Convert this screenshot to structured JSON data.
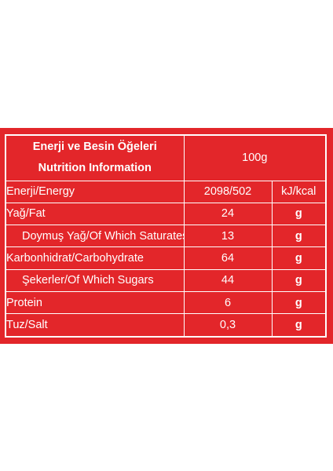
{
  "table": {
    "header": {
      "title_tr": "Enerji ve Besin Öğeleri",
      "title_en": "Nutrition Information",
      "amount": "100g"
    },
    "rows": [
      {
        "label": "Enerji/Energy",
        "value": "2098/502",
        "unit": "kJ/kcal"
      },
      {
        "label": "Yağ/Fat",
        "value": "24",
        "unit": "g"
      },
      {
        "label": "Doymuş Yağ/Of Which Saturates",
        "value": "13",
        "unit": "g"
      },
      {
        "label": "Karbonhidrat/Carbohydrate",
        "value": "64",
        "unit": "g"
      },
      {
        "label": "Şekerler/Of Which Sugars",
        "value": "44",
        "unit": "g"
      },
      {
        "label": "Protein",
        "value": "6",
        "unit": "g"
      },
      {
        "label": "Tuz/Salt",
        "value": "0,3",
        "unit": "g"
      }
    ]
  },
  "colors": {
    "background": "#e3262a",
    "text": "#ffffff"
  }
}
